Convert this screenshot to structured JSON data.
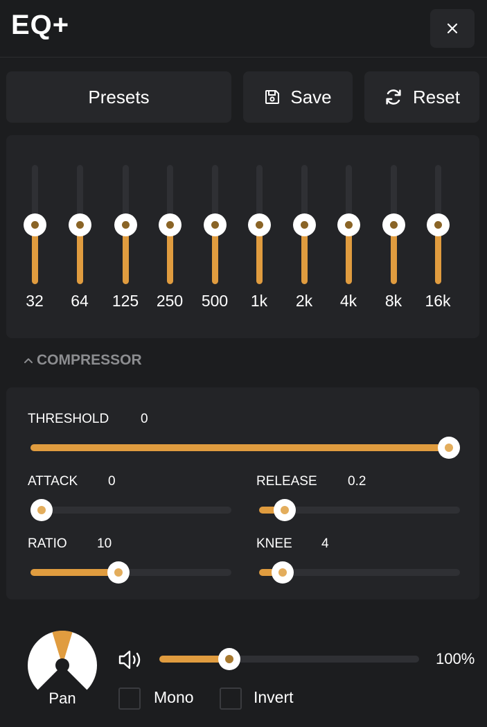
{
  "header": {
    "title": "EQ+",
    "close_label": "×"
  },
  "toolbar": {
    "presets_label": "Presets",
    "save_label": "Save",
    "reset_label": "Reset"
  },
  "eq": {
    "bands": [
      {
        "label": "32",
        "value": 0
      },
      {
        "label": "64",
        "value": 0
      },
      {
        "label": "125",
        "value": 0
      },
      {
        "label": "250",
        "value": 0
      },
      {
        "label": "500",
        "value": 0
      },
      {
        "label": "1k",
        "value": 0
      },
      {
        "label": "2k",
        "value": 0
      },
      {
        "label": "4k",
        "value": 0
      },
      {
        "label": "8k",
        "value": 0
      },
      {
        "label": "16k",
        "value": 0
      }
    ],
    "level_fraction": 0.5
  },
  "compressor": {
    "section_label": "COMPRESSOR",
    "threshold": {
      "label": "THRESHOLD",
      "value": "0",
      "fraction": 1.0
    },
    "attack": {
      "label": "ATTACK",
      "value": "0",
      "fraction": 0.0
    },
    "release": {
      "label": "RELEASE",
      "value": "0.2",
      "fraction": 0.08
    },
    "ratio": {
      "label": "RATIO",
      "value": "10",
      "fraction": 0.43
    },
    "knee": {
      "label": "KNEE",
      "value": "4",
      "fraction": 0.07
    }
  },
  "output": {
    "pan_label": "Pan",
    "volume_text": "100%",
    "volume_fraction": 0.27,
    "mono_label": "Mono",
    "invert_label": "Invert",
    "mono_checked": false,
    "invert_checked": false
  },
  "colors": {
    "accent": "#e09c3f",
    "background": "#1c1d1f",
    "panel": "#232427"
  },
  "icons": {
    "close": "close-icon",
    "save": "floppy-disk-icon",
    "reset": "refresh-icon",
    "collapse": "chevron-up-icon",
    "volume": "speaker-icon"
  }
}
